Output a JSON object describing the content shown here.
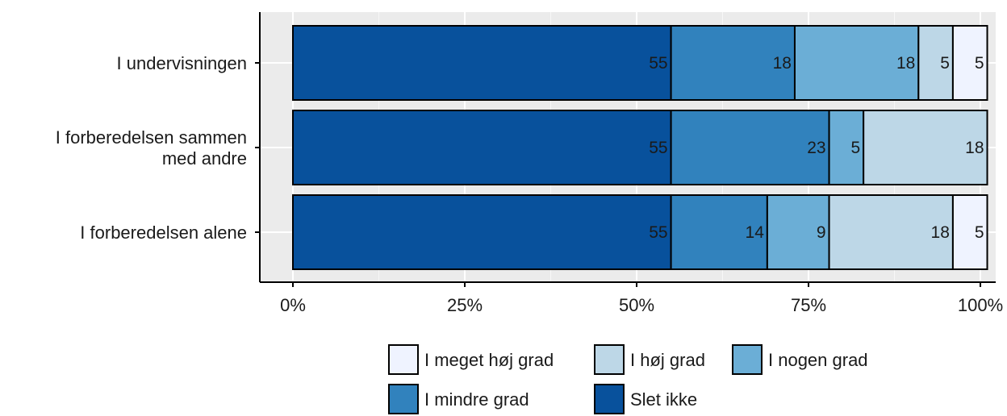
{
  "chart_data": {
    "type": "bar",
    "orientation": "horizontal",
    "stacked": true,
    "categories": [
      "I undervisningen",
      "I forberedelsen sammen med andre",
      "I forberedelsen alene"
    ],
    "category_label_lines": [
      [
        "I undervisningen"
      ],
      [
        "I forberedelsen sammen",
        "med andre"
      ],
      [
        "I forberedelsen alene"
      ]
    ],
    "series": [
      {
        "name": "Slet ikke",
        "values": [
          55,
          55,
          55
        ],
        "color": "#08519c"
      },
      {
        "name": "I mindre grad",
        "values": [
          18,
          23,
          14
        ],
        "color": "#3182bd"
      },
      {
        "name": "I nogen grad",
        "values": [
          18,
          5,
          9
        ],
        "color": "#6baed6"
      },
      {
        "name": "I høj grad",
        "values": [
          5,
          18,
          18
        ],
        "color": "#bdd7e7"
      },
      {
        "name": "I meget høj grad",
        "values": [
          5,
          0,
          5
        ],
        "color": "#eff3ff"
      }
    ],
    "xlim": [
      0,
      100
    ],
    "x_ticks": [
      0,
      25,
      50,
      75,
      100
    ],
    "x_tick_labels": [
      "0%",
      "25%",
      "50%",
      "75%",
      "100%"
    ],
    "title": "",
    "xlabel": "",
    "ylabel": "",
    "grid": true,
    "legend_position": "bottom",
    "legend_order": [
      "I meget høj grad",
      "I høj grad",
      "I nogen grad",
      "I mindre grad",
      "Slet ikke"
    ]
  }
}
